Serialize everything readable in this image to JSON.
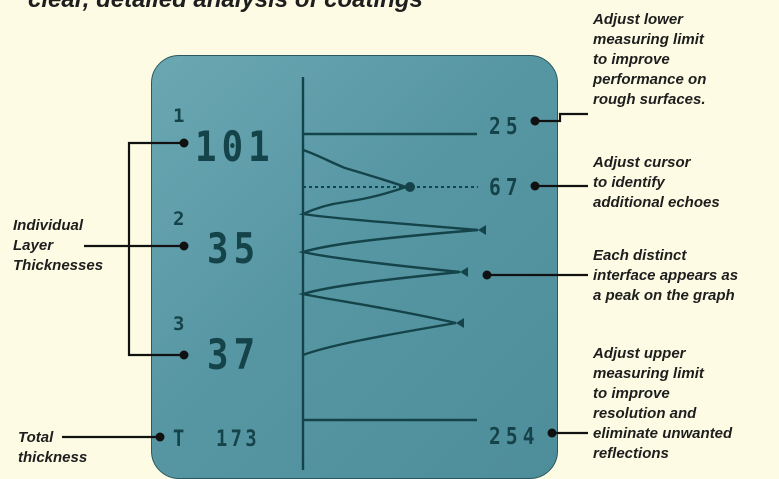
{
  "title": "clear, detailed analysis of coatings",
  "display": {
    "layers": [
      {
        "index": "1",
        "value": "101"
      },
      {
        "index": "2",
        "value": "35"
      },
      {
        "index": "3",
        "value": "37"
      }
    ],
    "total": {
      "symbol": "T",
      "value": "173"
    },
    "readings": {
      "lower_limit": "25",
      "cursor": "67",
      "upper_limit": "254"
    }
  },
  "annotations": {
    "layer_label": [
      "Individual",
      "Layer",
      "Thicknesses"
    ],
    "total_label": [
      "Total",
      "thickness"
    ],
    "lower_limit": [
      "Adjust lower",
      "measuring limit",
      "to improve",
      "performance on",
      "rough surfaces."
    ],
    "cursor": [
      "Adjust cursor",
      "to identify",
      "additional echoes"
    ],
    "peaks": [
      "Each distinct",
      "interface appears as",
      "a peak on the graph"
    ],
    "upper_limit": [
      "Adjust upper",
      "measuring limit",
      "to improve",
      "resolution and",
      "eliminate unwanted",
      "reflections"
    ]
  },
  "colors": {
    "background": "#fdfbe3",
    "screen": "#5c9aa6",
    "display_text": "#15434a",
    "annotation_text": "#1e1e1e"
  }
}
